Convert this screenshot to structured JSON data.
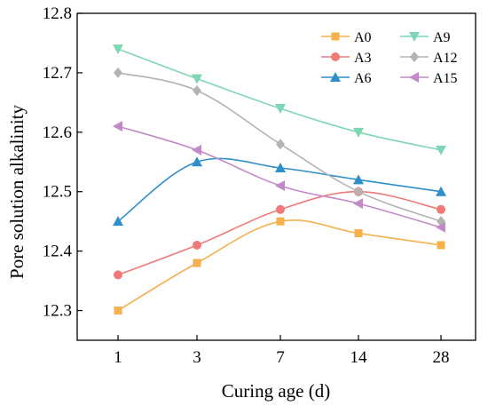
{
  "chart_data": {
    "type": "line",
    "title": "",
    "xlabel": "Curing age (d)",
    "ylabel": "Pore solution alkalinity",
    "categories": [
      "1",
      "3",
      "7",
      "14",
      "28"
    ],
    "ylim": [
      12.25,
      12.8
    ],
    "yticks": [
      "12.3",
      "12.4",
      "12.5",
      "12.6",
      "12.7",
      "12.8"
    ],
    "grid": false,
    "legend_position": "top-right",
    "series": [
      {
        "name": "A0",
        "color": "#F5B14C",
        "marker": "square",
        "values": [
          12.3,
          12.38,
          12.45,
          12.43,
          12.41
        ]
      },
      {
        "name": "A3",
        "color": "#F07A78",
        "marker": "circle",
        "values": [
          12.36,
          12.41,
          12.47,
          12.5,
          12.47
        ]
      },
      {
        "name": "A6",
        "color": "#2E8FCB",
        "marker": "triangle-up",
        "values": [
          12.45,
          12.55,
          12.54,
          12.52,
          12.5
        ]
      },
      {
        "name": "A9",
        "color": "#7FD6B2",
        "marker": "triangle-down",
        "values": [
          12.74,
          12.69,
          12.64,
          12.6,
          12.57
        ]
      },
      {
        "name": "A12",
        "color": "#B3B3B3",
        "marker": "diamond",
        "values": [
          12.7,
          12.67,
          12.58,
          12.5,
          12.45
        ]
      },
      {
        "name": "A15",
        "color": "#C28AC8",
        "marker": "triangle-left",
        "values": [
          12.61,
          12.57,
          12.51,
          12.48,
          12.44
        ]
      }
    ]
  }
}
